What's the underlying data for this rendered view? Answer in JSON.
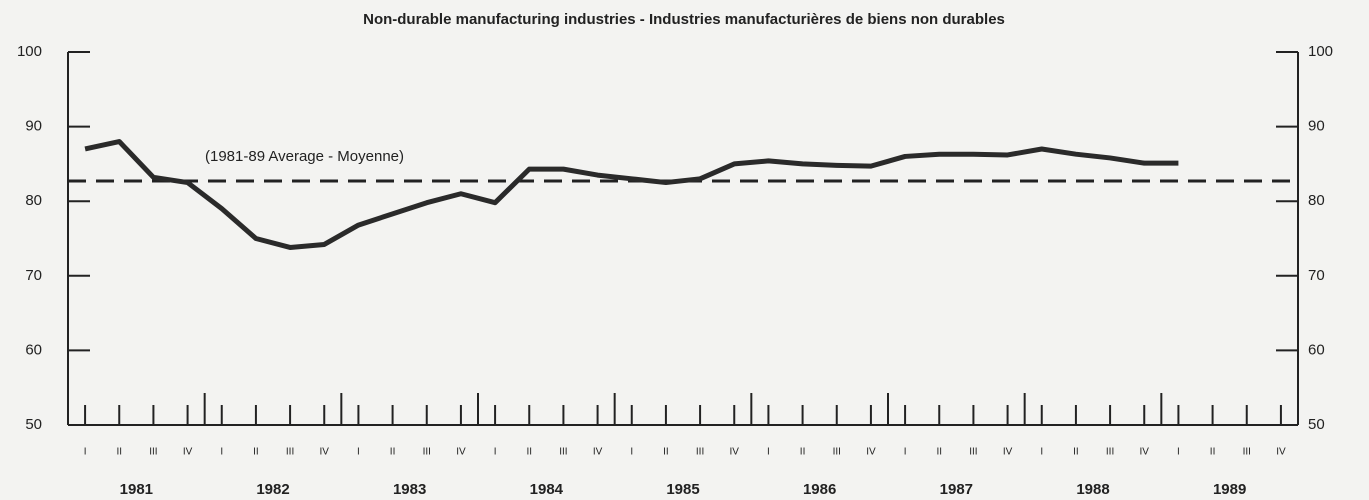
{
  "chart_data": {
    "type": "line",
    "title": "Non-durable manufacturing industries - Industries manufacturières de biens non durables",
    "annotation": "(1981-89 Average - Moyenne)",
    "categories": [
      "I",
      "II",
      "III",
      "IV",
      "I",
      "II",
      "III",
      "IV",
      "I",
      "II",
      "III",
      "IV",
      "I",
      "II",
      "III",
      "IV",
      "I",
      "II",
      "III",
      "IV",
      "I",
      "II",
      "III",
      "IV",
      "I",
      "II",
      "III",
      "IV",
      "I",
      "II",
      "III",
      "IV",
      "I",
      "II",
      "III",
      "IV"
    ],
    "years": [
      "1981",
      "1982",
      "1983",
      "1984",
      "1985",
      "1986",
      "1987",
      "1988",
      "1989"
    ],
    "values": [
      87,
      88,
      83.2,
      82.5,
      79,
      75,
      73.8,
      74.2,
      76.8,
      78.3,
      79.8,
      81,
      79.8,
      84.3,
      84.3,
      83.5,
      83,
      82.5,
      83,
      85,
      85.4,
      85,
      84.8,
      84.7,
      86,
      86.3,
      86.3,
      86.2,
      87,
      86.3,
      85.8,
      85.1,
      85.1,
      null,
      null,
      null
    ],
    "color": "#2a2a2a",
    "average": 82.7,
    "ylim": [
      50,
      100
    ],
    "yticks": [
      50,
      60,
      70,
      80,
      90,
      100
    ],
    "y2lim": [
      50,
      100
    ],
    "y2ticks": [
      50,
      60,
      70,
      80,
      90,
      100
    ]
  }
}
